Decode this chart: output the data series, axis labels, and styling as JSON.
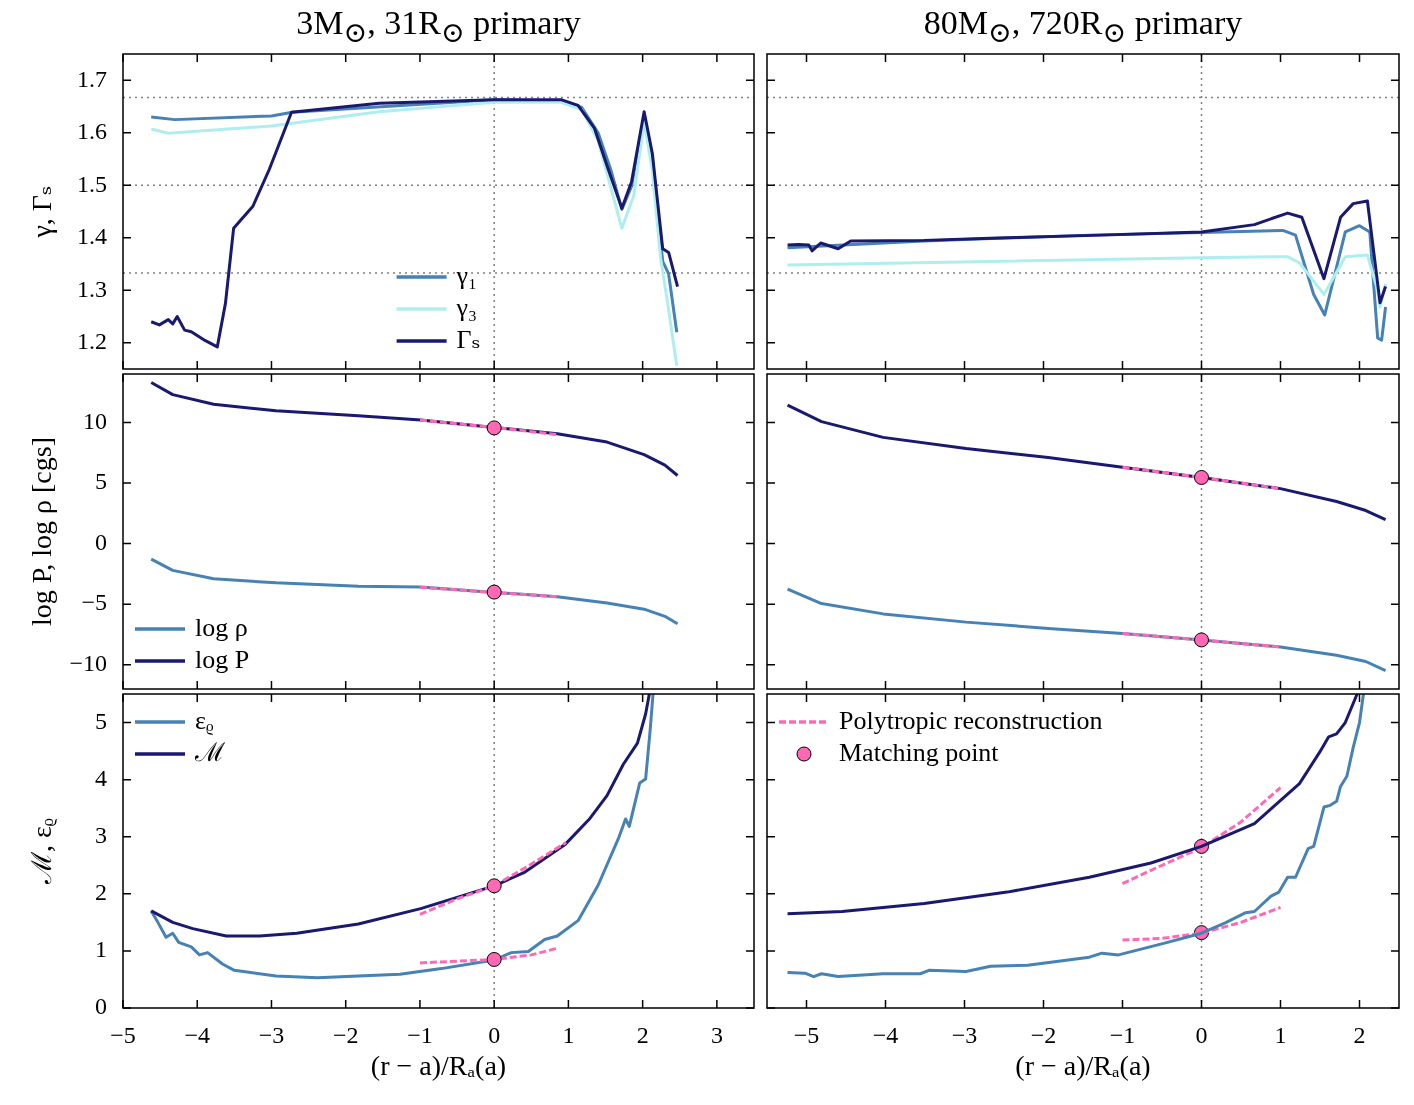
{
  "chart_data": [
    {
      "type": "line",
      "title": "3M$_{⊙}$, 31R$_{⊙}$ primary",
      "ylabel": "γ, Γₛ",
      "xlim": [
        -5,
        3.5
      ],
      "xticks": [
        -5,
        -4,
        -3,
        -2,
        -1,
        0,
        1,
        2,
        3
      ],
      "ylim": [
        1.15,
        1.75
      ],
      "yticks": [
        1.2,
        1.3,
        1.4,
        1.5,
        1.6,
        1.7
      ],
      "tick_labels": "y",
      "legend": "bottom",
      "ref_lines": [
        {
          "axis": "x",
          "value": 0,
          "color": "#808080",
          "line_style": "dotted"
        },
        {
          "axis": "y",
          "value": 1.667,
          "color": "#808080",
          "line_style": "dotted"
        },
        {
          "axis": "y",
          "value": 1.5,
          "color": "#808080",
          "line_style": "dotted"
        },
        {
          "axis": "y",
          "value": 1.333,
          "color": "#808080",
          "line_style": "dotted"
        }
      ],
      "series": [
        {
          "name": "γ₁",
          "color": "#4682b4",
          "x": [
            -4.62,
            -4.3,
            -3,
            -2.72,
            0,
            0.9,
            1.18,
            1.4,
            1.57,
            1.72,
            1.85,
            2.02,
            2.13,
            2.27,
            2.35,
            2.46
          ],
          "values": [
            1.63,
            1.625,
            1.632,
            1.639,
            1.663,
            1.66,
            1.648,
            1.6,
            1.53,
            1.454,
            1.498,
            1.633,
            1.553,
            1.355,
            1.331,
            1.22
          ]
        },
        {
          "name": "γ₃",
          "color": "#afeeee",
          "x": [
            -4.62,
            -4.39,
            -3,
            -1.55,
            0,
            0.9,
            1.18,
            1.4,
            1.72,
            1.88,
            2.02,
            2.13,
            2.24,
            2.32,
            2.46
          ],
          "values": [
            1.607,
            1.599,
            1.613,
            1.64,
            1.658,
            1.658,
            1.644,
            1.585,
            1.418,
            1.48,
            1.62,
            1.529,
            1.363,
            1.291,
            1.156
          ]
        },
        {
          "name": "Γₛ",
          "color": "#191970",
          "x": [
            -4.62,
            -4.51,
            -4.39,
            -4.33,
            -4.27,
            -4.17,
            -4.08,
            -3.89,
            -3.73,
            -3.62,
            -3.51,
            -3.25,
            -3.03,
            -2.73,
            -1.55,
            0,
            0.9,
            1.13,
            1.35,
            1.52,
            1.72,
            1.85,
            2.02,
            2.13,
            2.27,
            2.35,
            2.47
          ],
          "values": [
            1.24,
            1.234,
            1.244,
            1.236,
            1.25,
            1.224,
            1.221,
            1.204,
            1.192,
            1.275,
            1.418,
            1.46,
            1.53,
            1.639,
            1.656,
            1.663,
            1.663,
            1.652,
            1.609,
            1.537,
            1.456,
            1.506,
            1.64,
            1.561,
            1.379,
            1.372,
            1.307
          ]
        }
      ]
    },
    {
      "type": "line",
      "title": "80M$_{⊙}$, 720R$_{⊙}$ primary",
      "xlim": [
        -5.5,
        2.5
      ],
      "xticks": [
        -5,
        -4,
        -3,
        -2,
        -1,
        0,
        1,
        2
      ],
      "ylim": [
        1.15,
        1.75
      ],
      "yticks": [
        1.2,
        1.3,
        1.4,
        1.5,
        1.6,
        1.7
      ],
      "tick_labels": false,
      "ref_lines": [
        {
          "axis": "x",
          "value": 0,
          "color": "#808080",
          "line_style": "dotted"
        },
        {
          "axis": "y",
          "value": 1.667,
          "color": "#808080",
          "line_style": "dotted"
        },
        {
          "axis": "y",
          "value": 1.5,
          "color": "#808080",
          "line_style": "dotted"
        },
        {
          "axis": "y",
          "value": 1.333,
          "color": "#808080",
          "line_style": "dotted"
        }
      ],
      "series": [
        {
          "color": "#4682b4",
          "x": [
            -5.24,
            -3.51,
            -1.42,
            0,
            1.03,
            1.19,
            1.42,
            1.56,
            1.82,
            2.0,
            2.13,
            2.23,
            2.28,
            2.33
          ],
          "values": [
            1.381,
            1.394,
            1.405,
            1.41,
            1.414,
            1.405,
            1.292,
            1.253,
            1.411,
            1.423,
            1.411,
            1.209,
            1.205,
            1.268
          ]
        },
        {
          "color": "#afeeee",
          "x": [
            -5.24,
            0,
            1.09,
            1.24,
            1.55,
            1.82,
            2.1,
            2.23,
            2.26,
            2.33
          ],
          "values": [
            1.348,
            1.362,
            1.364,
            1.352,
            1.292,
            1.364,
            1.367,
            1.3,
            1.268,
            1.312
          ]
        },
        {
          "color": "#191970",
          "x": [
            -5.24,
            -5.1,
            -4.97,
            -4.93,
            -4.82,
            -4.6,
            -4.44,
            -3.51,
            -2.67,
            -1.26,
            0,
            0.67,
            1.09,
            1.27,
            1.55,
            1.76,
            1.92,
            2.1,
            2.26,
            2.33
          ],
          "values": [
            1.386,
            1.387,
            1.386,
            1.375,
            1.39,
            1.379,
            1.394,
            1.395,
            1.399,
            1.405,
            1.411,
            1.425,
            1.447,
            1.439,
            1.322,
            1.439,
            1.465,
            1.47,
            1.276,
            1.307
          ]
        }
      ]
    },
    {
      "type": "line",
      "ylabel": "log P, log ρ [cgs]",
      "xlim": [
        -5,
        3.5
      ],
      "xticks": [
        -5,
        -4,
        -3,
        -2,
        -1,
        0,
        1,
        2,
        3
      ],
      "ylim": [
        -12,
        14
      ],
      "yticks": [
        -10,
        -5,
        0,
        5,
        10
      ],
      "tick_labels": "y",
      "legend": "bottom left",
      "ref_lines": [
        {
          "axis": "x",
          "value": 0,
          "color": "#808080",
          "line_style": "dotted"
        }
      ],
      "series": [
        {
          "name": "log ρ",
          "color": "#4682b4",
          "x": [
            -4.62,
            -4.33,
            -3.78,
            -2.94,
            -1.83,
            -0.99,
            0,
            0.85,
            1.52,
            2.02,
            2.3,
            2.47
          ],
          "values": [
            -1.28,
            -2.21,
            -2.9,
            -3.24,
            -3.52,
            -3.59,
            -4.03,
            -4.38,
            -4.9,
            -5.41,
            -6.0,
            -6.62
          ]
        },
        {
          "name": "log P",
          "color": "#191970",
          "x": [
            -4.62,
            -4.33,
            -3.78,
            -2.94,
            -1.83,
            -0.99,
            0,
            0.85,
            1.52,
            2.02,
            2.3,
            2.47
          ],
          "values": [
            13.3,
            12.3,
            11.5,
            10.97,
            10.55,
            10.2,
            9.59,
            9.07,
            8.38,
            7.34,
            6.48,
            5.62
          ]
        },
        {
          "type": "line",
          "line_style": "dashed",
          "color": "#ff69b4",
          "x": [
            -1,
            0,
            0.85
          ],
          "values": [
            10.2,
            9.59,
            9.0
          ]
        },
        {
          "type": "line",
          "line_style": "dashed",
          "color": "#ff69b4",
          "x": [
            -1,
            0,
            0.85
          ],
          "values": [
            -3.6,
            -4.03,
            -4.38
          ]
        },
        {
          "type": "scatter",
          "marker": "circle",
          "color": "#ff69b4",
          "x": [
            0,
            0
          ],
          "values": [
            9.55,
            -4.0
          ]
        }
      ]
    },
    {
      "type": "line",
      "xlim": [
        -5.5,
        2.5
      ],
      "xticks": [
        -5,
        -4,
        -3,
        -2,
        -1,
        0,
        1,
        2
      ],
      "ylim": [
        -12,
        14
      ],
      "yticks": [
        -10,
        -5,
        0,
        5,
        10
      ],
      "tick_labels": false,
      "ref_lines": [
        {
          "axis": "x",
          "value": 0,
          "color": "#808080",
          "line_style": "dotted"
        }
      ],
      "series": [
        {
          "color": "#4682b4",
          "x": [
            -5.24,
            -4.81,
            -4.03,
            -2.98,
            -1.94,
            -1.0,
            0,
            1.0,
            1.71,
            2.08,
            2.33
          ],
          "values": [
            -3.75,
            -4.95,
            -5.8,
            -6.48,
            -7.0,
            -7.41,
            -7.95,
            -8.53,
            -9.22,
            -9.73,
            -10.48
          ]
        },
        {
          "color": "#191970",
          "x": [
            -5.24,
            -4.81,
            -4.03,
            -2.98,
            -1.94,
            -1.0,
            0,
            1.0,
            1.71,
            2.08,
            2.33
          ],
          "values": [
            11.43,
            10.07,
            8.77,
            7.85,
            7.1,
            6.31,
            5.46,
            4.54,
            3.48,
            2.73,
            1.98
          ]
        },
        {
          "type": "line",
          "line_style": "dashed",
          "color": "#ff69b4",
          "x": [
            -1,
            0,
            1
          ],
          "values": [
            6.31,
            5.46,
            4.54
          ]
        },
        {
          "type": "line",
          "line_style": "dashed",
          "color": "#ff69b4",
          "x": [
            -1,
            0,
            1
          ],
          "values": [
            -7.41,
            -7.95,
            -8.53
          ]
        },
        {
          "type": "scatter",
          "marker": "circle",
          "color": "#ff69b4",
          "x": [
            0,
            0
          ],
          "values": [
            5.46,
            -7.95
          ]
        }
      ]
    },
    {
      "type": "line",
      "xlabel": "(r − a)/Rₐ(a)",
      "ylabel": "ℳ, εᵨ",
      "xlim": [
        -5,
        3.5
      ],
      "xticks": [
        -5,
        -4,
        -3,
        -2,
        -1,
        0,
        1,
        2,
        3
      ],
      "ylim": [
        0,
        5.5
      ],
      "yticks": [
        0,
        1,
        2,
        3,
        4,
        5
      ],
      "legend": "top left",
      "ref_lines": [
        {
          "axis": "x",
          "value": 0,
          "color": "#808080",
          "line_style": "dotted"
        }
      ],
      "series": [
        {
          "name": "εᵨ",
          "color": "#4682b4",
          "x": [
            -4.62,
            -4.53,
            -4.42,
            -4.33,
            -4.25,
            -4.08,
            -3.97,
            -3.86,
            -3.66,
            -3.5,
            -2.94,
            -2.38,
            -1.83,
            -1.27,
            -0.71,
            0,
            0.23,
            0.46,
            0.68,
            0.85,
            1.13,
            1.4,
            1.68,
            1.77,
            1.82,
            1.96,
            2.04,
            2.1,
            2.14
          ],
          "values": [
            1.7,
            1.5,
            1.24,
            1.31,
            1.15,
            1.07,
            0.93,
            0.97,
            0.77,
            0.66,
            0.56,
            0.53,
            0.56,
            0.59,
            0.69,
            0.84,
            0.97,
            0.99,
            1.2,
            1.26,
            1.53,
            2.15,
            2.99,
            3.31,
            3.18,
            3.94,
            4.01,
            4.85,
            5.5
          ]
        },
        {
          "name": "ℳ",
          "color": "#191970",
          "x": [
            -4.62,
            -4.33,
            -4.06,
            -3.61,
            -3.16,
            -2.66,
            -1.83,
            -0.99,
            0,
            0.4,
            0.96,
            1.29,
            1.52,
            1.74,
            1.93,
            2.04,
            2.09
          ],
          "values": [
            1.7,
            1.5,
            1.39,
            1.26,
            1.26,
            1.31,
            1.47,
            1.74,
            2.14,
            2.37,
            2.87,
            3.32,
            3.72,
            4.27,
            4.64,
            5.15,
            5.5
          ]
        },
        {
          "type": "line",
          "line_style": "dashed",
          "color": "#ff69b4",
          "x": [
            -1,
            -0.5,
            0,
            0.5,
            0.97
          ],
          "values": [
            1.64,
            1.91,
            2.14,
            2.52,
            2.9
          ]
        },
        {
          "type": "line",
          "line_style": "dashed",
          "color": "#ff69b4",
          "x": [
            -1,
            -0.5,
            0,
            0.5,
            0.83
          ],
          "values": [
            0.79,
            0.82,
            0.85,
            0.93,
            1.04
          ]
        },
        {
          "type": "scatter",
          "marker": "circle",
          "color": "#ff69b4",
          "x": [
            0,
            0
          ],
          "values": [
            2.14,
            0.85
          ]
        }
      ]
    },
    {
      "type": "line",
      "xlabel": "(r − a)/Rₐ(a)",
      "xlim": [
        -5.5,
        2.5
      ],
      "xticks": [
        -5,
        -4,
        -3,
        -2,
        -1,
        0,
        1,
        2
      ],
      "ylim": [
        0,
        5.5
      ],
      "yticks": [
        0,
        1,
        2,
        3,
        4,
        5
      ],
      "tick_labels": "x",
      "legend": "top left",
      "ref_lines": [
        {
          "axis": "x",
          "value": 0,
          "color": "#808080",
          "line_style": "dotted"
        }
      ],
      "series": [
        {
          "name": "Polytropic reconstruction",
          "type": "line",
          "line_style": "dashed",
          "color": "#ff69b4",
          "x": [
            -1,
            -0.5,
            0,
            0.5,
            1.0
          ],
          "values": [
            2.18,
            2.5,
            2.81,
            3.26,
            3.86
          ]
        },
        {
          "name": "Matching point",
          "type": "scatter",
          "marker": "circle",
          "color": "#ff69b4",
          "x": [
            0,
            0
          ],
          "values": [
            2.83,
            1.32
          ]
        },
        {
          "type": "line",
          "line_style": "dashed",
          "color": "#ff69b4",
          "x": [
            -1,
            -0.5,
            0,
            0.5,
            1.0
          ],
          "values": [
            1.19,
            1.22,
            1.31,
            1.5,
            1.76
          ]
        },
        {
          "color": "#4682b4",
          "x": [
            -5.24,
            -5.02,
            -4.91,
            -4.81,
            -4.6,
            -4.03,
            -3.56,
            -3.45,
            -2.98,
            -2.67,
            -2.2,
            -1.42,
            -1.26,
            -1.05,
            -0.43,
            0,
            0.3,
            0.56,
            0.67,
            0.88,
            0.98,
            1.09,
            1.19,
            1.35,
            1.42,
            1.55,
            1.63,
            1.71,
            1.76,
            1.84,
            1.92,
            2.0,
            2.05
          ],
          "values": [
            0.62,
            0.61,
            0.55,
            0.6,
            0.55,
            0.6,
            0.6,
            0.66,
            0.64,
            0.73,
            0.75,
            0.89,
            0.96,
            0.93,
            1.15,
            1.31,
            1.49,
            1.67,
            1.69,
            1.96,
            2.03,
            2.29,
            2.29,
            2.79,
            2.83,
            3.52,
            3.55,
            3.62,
            3.88,
            4.06,
            4.56,
            5.0,
            5.5
          ]
        },
        {
          "color": "#191970",
          "x": [
            -5.24,
            -4.55,
            -3.51,
            -2.46,
            -1.42,
            -0.64,
            0,
            0.67,
            1.24,
            1.5,
            1.61,
            1.71,
            1.82,
            1.97
          ],
          "values": [
            1.65,
            1.69,
            1.83,
            2.03,
            2.29,
            2.54,
            2.83,
            3.23,
            3.93,
            4.49,
            4.75,
            4.8,
            5.0,
            5.5
          ]
        }
      ]
    }
  ]
}
